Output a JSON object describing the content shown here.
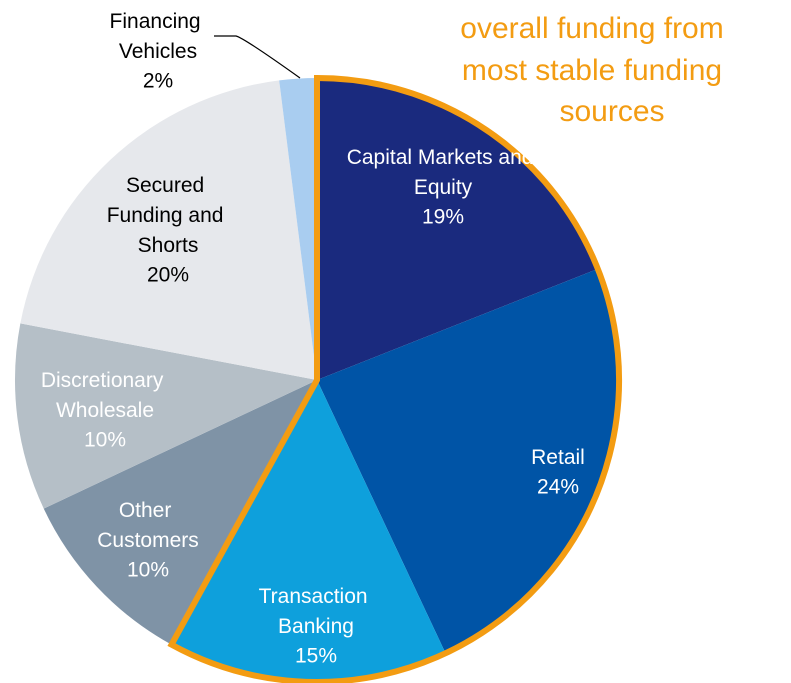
{
  "chart_data": {
    "type": "pie",
    "annotation": [
      "overall funding from",
      "most stable funding",
      "sources"
    ],
    "categories": [
      "Capital Markets and Equity",
      "Retail",
      "Transaction Banking",
      "Other Customers",
      "Discretionary Wholesale",
      "Secured Funding and Shorts",
      "Financing Vehicles"
    ],
    "values": [
      19,
      24,
      15,
      10,
      10,
      20,
      2
    ],
    "value_labels": [
      "19%",
      "24%",
      "15%",
      "10%",
      "10%",
      "20%",
      "2%"
    ],
    "colors": [
      "#1a2a7e",
      "#0054a6",
      "#0ea0dc",
      "#7f93a6",
      "#b5bfc7",
      "#e6e8ec",
      "#a9cdf0"
    ],
    "highlight_color": "#f39c12"
  }
}
